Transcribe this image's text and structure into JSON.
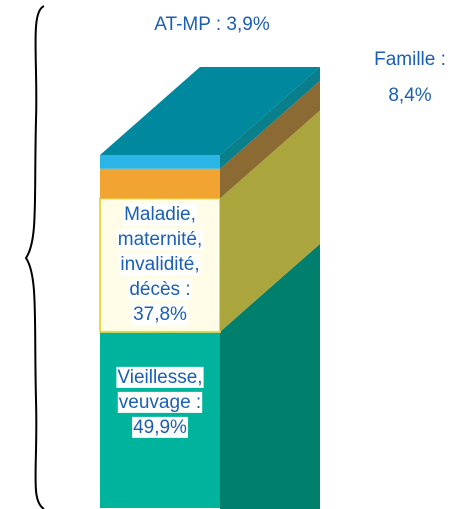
{
  "chart_data": {
    "type": "stacked-bar-3d",
    "categories": [
      [
        "Vieillesse,",
        "veuvage :"
      ],
      [
        "Maladie,",
        "maternité,",
        "invalidité,",
        "décès :"
      ],
      [
        "Famille :"
      ],
      [
        "AT-MP :"
      ]
    ],
    "values": [
      49.9,
      37.8,
      8.4,
      3.9
    ],
    "value_labels": [
      "49,9%",
      "37,8%",
      "8,4%",
      "3,9%"
    ],
    "colors": [
      "#00b39d",
      "#fffde8",
      "#f2a433",
      "#2bb5e6"
    ],
    "side_colors": [
      "#00806c",
      "#aaa53c",
      "#8b6b33",
      "#0a7f8c"
    ],
    "top_color": "#00889f",
    "ylim": [
      0,
      100
    ]
  }
}
